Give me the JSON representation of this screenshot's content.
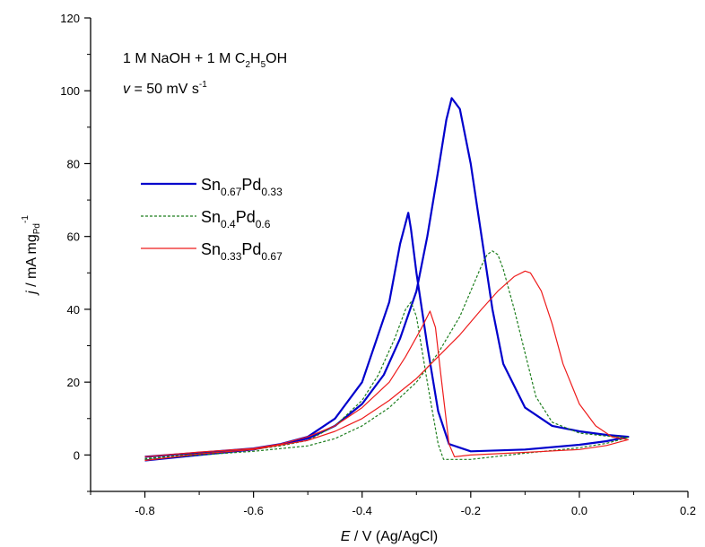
{
  "chart_data": {
    "type": "line",
    "xlabel": {
      "italic": "E",
      "rest": " / V (Ag/AgCl)"
    },
    "ylabel": {
      "italic": "j",
      "rest": " / mA mg",
      "sub": "Pd",
      "sup": "-1"
    },
    "xlim": [
      -0.9,
      0.2
    ],
    "ylim": [
      -10,
      120
    ],
    "xticks": [
      -0.8,
      -0.6,
      -0.4,
      -0.2,
      0.0,
      0.2
    ],
    "xtick_labels": [
      "-0.8",
      "-0.6",
      "-0.4",
      "-0.2",
      "0.0",
      "0.2"
    ],
    "yticks": [
      0,
      20,
      40,
      60,
      80,
      100,
      120
    ],
    "ytick_labels": [
      "0",
      "20",
      "40",
      "60",
      "80",
      "100",
      "120"
    ],
    "grid": false,
    "legend_position": "upper-left",
    "annotations": [
      {
        "parts": [
          "1 M NaOH + 1 M C",
          "2",
          "H",
          "5",
          "OH"
        ]
      },
      {
        "parts": [
          "v",
          " = 50 mV s",
          "-1"
        ]
      }
    ],
    "series": [
      {
        "name_parts": [
          "Sn",
          "0.67",
          "Pd",
          "0.33"
        ],
        "color": "#0000cc",
        "style": "solid",
        "forward": [
          [
            -0.8,
            -1.5
          ],
          [
            -0.7,
            0.0
          ],
          [
            -0.6,
            1.5
          ],
          [
            -0.5,
            4.5
          ],
          [
            -0.45,
            8
          ],
          [
            -0.4,
            14
          ],
          [
            -0.36,
            22
          ],
          [
            -0.33,
            32
          ],
          [
            -0.3,
            45
          ],
          [
            -0.28,
            60
          ],
          [
            -0.26,
            78
          ],
          [
            -0.245,
            92
          ],
          [
            -0.235,
            98
          ],
          [
            -0.22,
            95
          ],
          [
            -0.2,
            80
          ],
          [
            -0.18,
            60
          ],
          [
            -0.16,
            40
          ],
          [
            -0.14,
            25
          ],
          [
            -0.1,
            13
          ],
          [
            -0.05,
            8
          ],
          [
            0.0,
            6.5
          ],
          [
            0.05,
            5.5
          ],
          [
            0.09,
            5.0
          ]
        ],
        "reverse": [
          [
            0.09,
            5.0
          ],
          [
            0.05,
            3.8
          ],
          [
            0.0,
            2.8
          ],
          [
            -0.1,
            1.5
          ],
          [
            -0.2,
            1.0
          ],
          [
            -0.24,
            3
          ],
          [
            -0.26,
            12
          ],
          [
            -0.28,
            30
          ],
          [
            -0.3,
            50
          ],
          [
            -0.31,
            62
          ],
          [
            -0.315,
            66.5
          ],
          [
            -0.33,
            58
          ],
          [
            -0.35,
            42
          ],
          [
            -0.4,
            20
          ],
          [
            -0.45,
            10
          ],
          [
            -0.5,
            5
          ],
          [
            -0.55,
            3
          ],
          [
            -0.6,
            1.8
          ],
          [
            -0.7,
            0.6
          ],
          [
            -0.8,
            -0.5
          ]
        ]
      },
      {
        "name_parts": [
          "Sn",
          "0.4",
          "Pd",
          "0.6"
        ],
        "color": "#1e7e1e",
        "style": "dotted",
        "forward": [
          [
            -0.8,
            -1.2
          ],
          [
            -0.7,
            0.0
          ],
          [
            -0.6,
            1.0
          ],
          [
            -0.5,
            2.5
          ],
          [
            -0.45,
            4.5
          ],
          [
            -0.4,
            8
          ],
          [
            -0.35,
            13
          ],
          [
            -0.3,
            20
          ],
          [
            -0.26,
            28
          ],
          [
            -0.22,
            38
          ],
          [
            -0.2,
            45
          ],
          [
            -0.18,
            52
          ],
          [
            -0.17,
            55
          ],
          [
            -0.16,
            56
          ],
          [
            -0.15,
            55
          ],
          [
            -0.14,
            51
          ],
          [
            -0.12,
            40
          ],
          [
            -0.1,
            28
          ],
          [
            -0.08,
            16
          ],
          [
            -0.05,
            9
          ],
          [
            0.0,
            6
          ],
          [
            0.05,
            5.2
          ],
          [
            0.09,
            4.8
          ]
        ],
        "reverse": [
          [
            0.09,
            4.8
          ],
          [
            0.05,
            3.2
          ],
          [
            0.0,
            2.0
          ],
          [
            -0.1,
            0.5
          ],
          [
            -0.2,
            -1.2
          ],
          [
            -0.25,
            -1.2
          ],
          [
            -0.26,
            3
          ],
          [
            -0.28,
            20
          ],
          [
            -0.3,
            38
          ],
          [
            -0.31,
            42
          ],
          [
            -0.32,
            40
          ],
          [
            -0.34,
            32
          ],
          [
            -0.37,
            22
          ],
          [
            -0.4,
            15
          ],
          [
            -0.45,
            8
          ],
          [
            -0.5,
            4
          ],
          [
            -0.55,
            2.5
          ],
          [
            -0.6,
            1.5
          ],
          [
            -0.7,
            0.4
          ],
          [
            -0.8,
            -1.0
          ]
        ]
      },
      {
        "name_parts": [
          "Sn",
          "0.33",
          "Pd",
          "0.67"
        ],
        "color": "#ee1c1c",
        "style": "solid",
        "forward": [
          [
            -0.8,
            -1.5
          ],
          [
            -0.7,
            0.3
          ],
          [
            -0.6,
            1.5
          ],
          [
            -0.5,
            4
          ],
          [
            -0.45,
            6.5
          ],
          [
            -0.4,
            10
          ],
          [
            -0.35,
            15
          ],
          [
            -0.3,
            21
          ],
          [
            -0.26,
            27
          ],
          [
            -0.22,
            33
          ],
          [
            -0.18,
            40
          ],
          [
            -0.15,
            45
          ],
          [
            -0.12,
            49
          ],
          [
            -0.1,
            50.5
          ],
          [
            -0.09,
            50
          ],
          [
            -0.07,
            45
          ],
          [
            -0.05,
            36
          ],
          [
            -0.03,
            25
          ],
          [
            0.0,
            14
          ],
          [
            0.03,
            8
          ],
          [
            0.06,
            5
          ],
          [
            0.09,
            4.2
          ]
        ],
        "reverse": [
          [
            0.09,
            4.2
          ],
          [
            0.05,
            2.6
          ],
          [
            0.0,
            1.5
          ],
          [
            -0.1,
            0.7
          ],
          [
            -0.2,
            0.0
          ],
          [
            -0.23,
            -0.5
          ],
          [
            -0.24,
            3
          ],
          [
            -0.255,
            22
          ],
          [
            -0.265,
            35
          ],
          [
            -0.275,
            39.5
          ],
          [
            -0.29,
            35
          ],
          [
            -0.32,
            27
          ],
          [
            -0.35,
            20
          ],
          [
            -0.4,
            13
          ],
          [
            -0.45,
            8
          ],
          [
            -0.5,
            5
          ],
          [
            -0.55,
            3
          ],
          [
            -0.6,
            1.8
          ],
          [
            -0.7,
            0.8
          ],
          [
            -0.8,
            -0.5
          ]
        ]
      }
    ]
  }
}
